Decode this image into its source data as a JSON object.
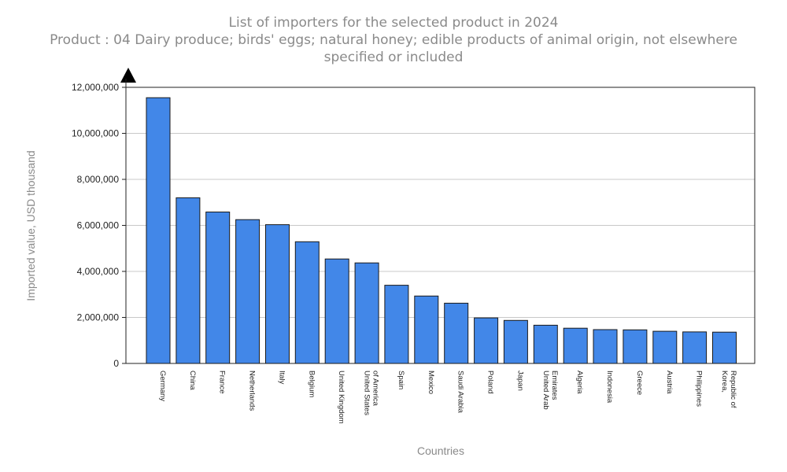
{
  "chart_data": {
    "type": "bar",
    "title": "List of importers for the selected product in 2024",
    "subtitle": "Product : 04 Dairy produce; birds' eggs; natural honey; edible products of animal origin, not elsewhere specified or included",
    "xlabel": "Countries",
    "ylabel": "Imported value, USD thousand",
    "ylim": [
      0,
      12000000
    ],
    "yticks": [
      0,
      2000000,
      4000000,
      6000000,
      8000000,
      10000000,
      12000000
    ],
    "ytick_labels": [
      "0",
      "2,000,000",
      "4,000,000",
      "6,000,000",
      "8,000,000",
      "10,000,000",
      "12,000,000"
    ],
    "grid": true,
    "bar_color": "#4287e8",
    "categories": [
      "Germany",
      "China",
      "France",
      "Netherlands",
      "Italy",
      "Belgium",
      "United Kingdom",
      "United States of America",
      "Spain",
      "Mexico",
      "Saudi Arabia",
      "Poland",
      "Japan",
      "United Arab Emirates",
      "Algeria",
      "Indonesia",
      "Greece",
      "Austria",
      "Philippines",
      "Korea, Republic of"
    ],
    "category_label_lines": [
      [
        "Germany"
      ],
      [
        "China"
      ],
      [
        "France"
      ],
      [
        "Netherlands"
      ],
      [
        "Italy"
      ],
      [
        "Belgium"
      ],
      [
        "United Kingdom"
      ],
      [
        "United States",
        "of America"
      ],
      [
        "Spain"
      ],
      [
        "Mexico"
      ],
      [
        "Saudi Arabia"
      ],
      [
        "Poland"
      ],
      [
        "Japan"
      ],
      [
        "United Arab",
        "Emirates"
      ],
      [
        "Algeria"
      ],
      [
        "Indonesia"
      ],
      [
        "Greece"
      ],
      [
        "Austria"
      ],
      [
        "Philippines"
      ],
      [
        "Korea,",
        "Republic of"
      ]
    ],
    "values": [
      11550000,
      7200000,
      6580000,
      6250000,
      6030000,
      5290000,
      4540000,
      4370000,
      3400000,
      2930000,
      2620000,
      1980000,
      1870000,
      1660000,
      1530000,
      1470000,
      1460000,
      1400000,
      1370000,
      1360000
    ]
  }
}
